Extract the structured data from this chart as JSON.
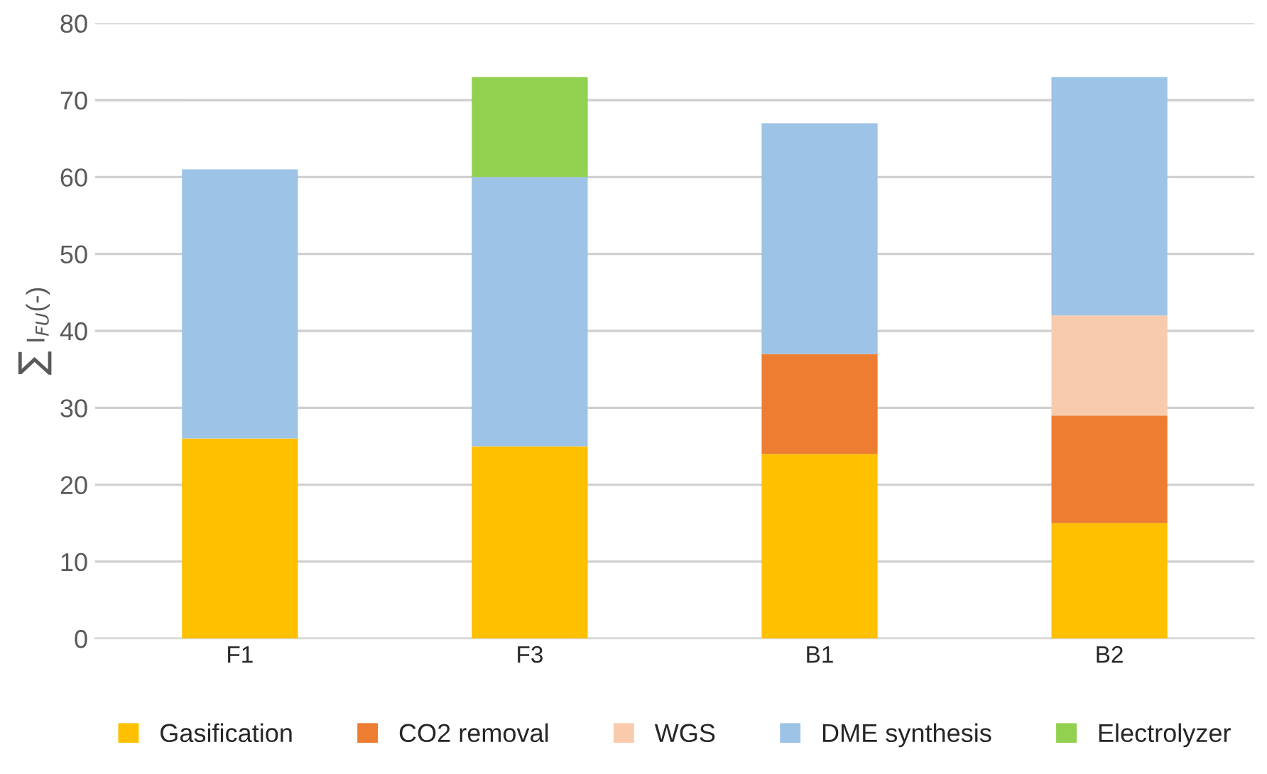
{
  "chart_data": {
    "type": "bar",
    "stacked": true,
    "ylabel": "∑ I$_{FU}$(-)",
    "categories": [
      "F1",
      "F3",
      "B1",
      "B2"
    ],
    "series": [
      {
        "name": "Gasification",
        "color": "#ffc000",
        "values": [
          26,
          25,
          24,
          15
        ]
      },
      {
        "name": "CO2 removal",
        "color": "#ed7d31",
        "values": [
          0,
          0,
          13,
          14
        ]
      },
      {
        "name": "WGS",
        "color": "#f8cbad",
        "values": [
          0,
          0,
          0,
          13
        ]
      },
      {
        "name": "DME synthesis",
        "color": "#9dc3e6",
        "values": [
          35,
          35,
          30,
          31
        ]
      },
      {
        "name": "Electrolyzer",
        "color": "#92d050",
        "values": [
          0,
          13,
          0,
          0
        ]
      }
    ],
    "ylim": [
      0,
      80
    ],
    "yticks": [
      0,
      10,
      20,
      30,
      40,
      50,
      60,
      70,
      80
    ],
    "grid": "y",
    "legend": "bottom"
  }
}
